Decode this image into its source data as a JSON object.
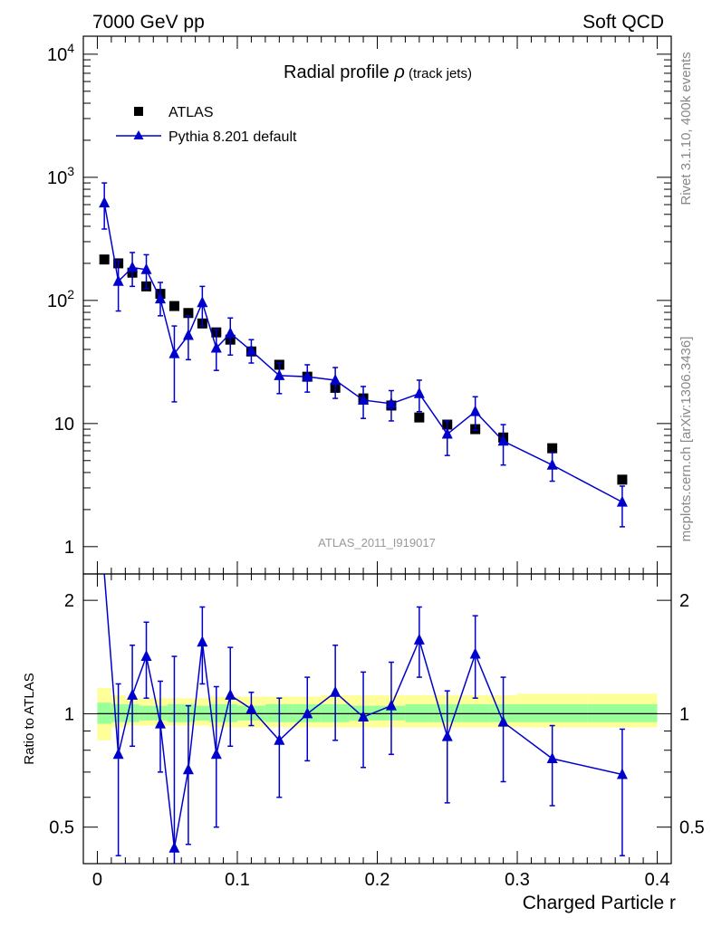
{
  "header": {
    "left": "7000 GeV pp",
    "right": "Soft QCD"
  },
  "side_texts": {
    "rivet": "Rivet 3.1.10,  400k events",
    "mcplots": "mcplots.cern.ch [arXiv:1306.3436]"
  },
  "colors": {
    "atlas": "#000000",
    "pythia": "#0000cc",
    "band_inner": "#99ff99",
    "band_outer": "#ffff99"
  },
  "chart_data": [
    {
      "type": "scatter",
      "title_main": "Radial profile ",
      "title_symbol": "ρ",
      "title_sub": " (track jets)",
      "watermark": "ATLAS_2011_I919017",
      "xlabel": "Charged Particle r",
      "ylabel": "",
      "xlim": [
        -0.01,
        0.41
      ],
      "ylim": [
        0.6,
        14000
      ],
      "log_y": true,
      "x_ticks": [
        0,
        0.1,
        0.2,
        0.3,
        0.4
      ],
      "x_tick_labels": [
        "0",
        "0.1",
        "0.2",
        "0.3",
        "0.4"
      ],
      "y_tick_labels": [
        {
          "value": 1,
          "base": "1",
          "exp": ""
        },
        {
          "value": 10,
          "base": "10",
          "exp": ""
        },
        {
          "value": 100,
          "base": "10",
          "exp": "2"
        },
        {
          "value": 1000,
          "base": "10",
          "exp": "3"
        },
        {
          "value": 10000,
          "base": "10",
          "exp": "4"
        }
      ],
      "legend_position": "top-left",
      "series": [
        {
          "name": "ATLAS",
          "marker": "square",
          "x": [
            0.005,
            0.015,
            0.025,
            0.035,
            0.045,
            0.055,
            0.065,
            0.075,
            0.085,
            0.095,
            0.11,
            0.13,
            0.15,
            0.17,
            0.19,
            0.21,
            0.23,
            0.25,
            0.27,
            0.29,
            0.325,
            0.375
          ],
          "y": [
            215,
            200,
            168,
            130,
            113,
            90,
            79,
            65,
            55,
            48,
            38.5,
            30,
            24,
            19.5,
            16,
            14,
            11.2,
            9.8,
            9.0,
            7.7,
            6.3,
            3.5
          ]
        },
        {
          "name": "Pythia 8.201 default",
          "marker": "triangle",
          "x": [
            0.005,
            0.015,
            0.025,
            0.035,
            0.045,
            0.055,
            0.065,
            0.075,
            0.085,
            0.095,
            0.11,
            0.13,
            0.15,
            0.17,
            0.19,
            0.21,
            0.23,
            0.25,
            0.27,
            0.29,
            0.325,
            0.375
          ],
          "y": [
            620,
            143,
            185,
            178,
            103,
            37,
            52,
            96,
            41,
            54,
            39,
            24.5,
            24,
            22.5,
            15.5,
            14.5,
            17.5,
            8.2,
            12.5,
            7.2,
            4.6,
            2.3
          ],
          "y_low": [
            380,
            82,
            130,
            125,
            75,
            15,
            33,
            62,
            27,
            36,
            31,
            17.5,
            18,
            16,
            11,
            10.5,
            12.5,
            5.5,
            8.8,
            4.6,
            3.4,
            1.45
          ],
          "y_high": [
            900,
            210,
            245,
            235,
            140,
            62,
            75,
            130,
            58,
            72,
            48,
            31,
            30,
            28.5,
            20,
            18.5,
            22.5,
            10.5,
            16.5,
            9.8,
            5.8,
            3.1
          ]
        }
      ]
    },
    {
      "type": "line",
      "ylabel": "Ratio to ATLAS",
      "xlim": [
        -0.01,
        0.41
      ],
      "ylim": [
        0.4,
        2.35
      ],
      "log_y": true,
      "y_tick_labels": [
        "0.5",
        "1",
        "2"
      ],
      "y_ticks": [
        0.5,
        1,
        2
      ],
      "band": {
        "x_edges": [
          0,
          0.01,
          0.02,
          0.03,
          0.04,
          0.05,
          0.06,
          0.07,
          0.08,
          0.09,
          0.1,
          0.12,
          0.14,
          0.16,
          0.18,
          0.2,
          0.22,
          0.24,
          0.26,
          0.28,
          0.3,
          0.35,
          0.4
        ],
        "inner_low": [
          0.94,
          0.95,
          0.95,
          0.96,
          0.96,
          0.95,
          0.95,
          0.96,
          0.95,
          0.95,
          0.96,
          0.95,
          0.95,
          0.95,
          0.96,
          0.96,
          0.95,
          0.95,
          0.95,
          0.95,
          0.95,
          0.95
        ],
        "inner_high": [
          1.07,
          1.06,
          1.06,
          1.05,
          1.05,
          1.06,
          1.06,
          1.05,
          1.06,
          1.06,
          1.05,
          1.06,
          1.06,
          1.06,
          1.05,
          1.05,
          1.06,
          1.06,
          1.06,
          1.06,
          1.06,
          1.06
        ],
        "outer_low": [
          0.85,
          0.92,
          0.93,
          0.93,
          0.93,
          0.93,
          0.93,
          0.93,
          0.92,
          0.92,
          0.92,
          0.92,
          0.92,
          0.92,
          0.92,
          0.92,
          0.92,
          0.92,
          0.92,
          0.92,
          0.92,
          0.92
        ],
        "outer_high": [
          1.17,
          1.12,
          1.1,
          1.1,
          1.1,
          1.1,
          1.1,
          1.1,
          1.11,
          1.11,
          1.11,
          1.11,
          1.11,
          1.12,
          1.12,
          1.12,
          1.12,
          1.12,
          1.12,
          1.12,
          1.13,
          1.13
        ]
      },
      "series": [
        {
          "name": "Pythia 8.201 default",
          "x": [
            0.005,
            0.015,
            0.025,
            0.035,
            0.045,
            0.055,
            0.065,
            0.075,
            0.085,
            0.095,
            0.11,
            0.13,
            0.15,
            0.17,
            0.19,
            0.21,
            0.23,
            0.25,
            0.27,
            0.29,
            0.325,
            0.375
          ],
          "y": [
            2.9,
            0.78,
            1.12,
            1.42,
            0.94,
            0.44,
            0.71,
            1.55,
            0.78,
            1.12,
            1.03,
            0.85,
            1.0,
            1.14,
            0.98,
            1.05,
            1.57,
            0.87,
            1.44,
            0.95,
            0.76,
            0.69
          ],
          "y_low": [
            2.9,
            0.42,
            0.82,
            1.1,
            0.7,
            0.18,
            0.45,
            1.2,
            0.5,
            0.82,
            0.93,
            0.6,
            0.75,
            0.85,
            0.72,
            0.78,
            1.25,
            0.58,
            1.1,
            0.66,
            0.57,
            0.42
          ],
          "y_high": [
            2.9,
            1.2,
            1.52,
            1.75,
            1.22,
            1.42,
            1.05,
            1.92,
            1.18,
            1.5,
            1.14,
            1.1,
            1.25,
            1.52,
            1.29,
            1.37,
            1.92,
            1.15,
            1.82,
            1.25,
            0.93,
            0.91
          ]
        }
      ]
    }
  ]
}
